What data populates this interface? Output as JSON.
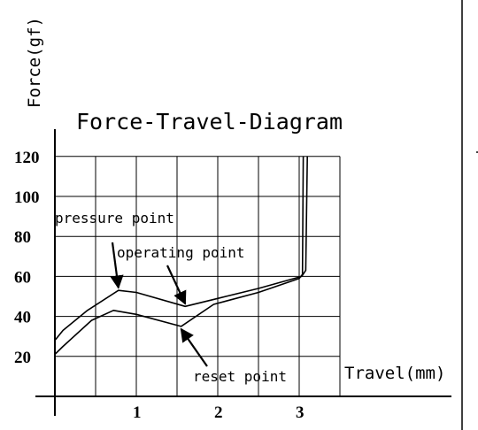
{
  "chart_data": {
    "type": "line",
    "title": "Force-Travel-Diagram",
    "xlabel": "Travel(mm)",
    "ylabel": "Force(gf)",
    "xlim": [
      0,
      3.5
    ],
    "ylim": [
      0,
      120
    ],
    "x_ticks": [
      "1",
      "2",
      "3"
    ],
    "x_tick_values": [
      1,
      2,
      3
    ],
    "y_ticks": [
      "20",
      "40",
      "60",
      "80",
      "100",
      "120"
    ],
    "y_tick_values": [
      20,
      40,
      60,
      80,
      100,
      120
    ],
    "grid": true,
    "series": [
      {
        "values": [
          {
            "x": 0.0,
            "y": 28
          },
          {
            "x": 0.1,
            "y": 33
          },
          {
            "x": 0.4,
            "y": 43
          },
          {
            "x": 0.78,
            "y": 53
          },
          {
            "x": 1.0,
            "y": 52
          },
          {
            "x": 1.6,
            "y": 45
          },
          {
            "x": 2.0,
            "y": 49
          },
          {
            "x": 2.5,
            "y": 54
          },
          {
            "x": 3.03,
            "y": 60
          },
          {
            "x": 3.08,
            "y": 63
          },
          {
            "x": 3.1,
            "y": 120
          }
        ]
      },
      {
        "values": [
          {
            "x": 0.0,
            "y": 21
          },
          {
            "x": 0.1,
            "y": 25
          },
          {
            "x": 0.45,
            "y": 38
          },
          {
            "x": 0.72,
            "y": 43
          },
          {
            "x": 1.0,
            "y": 41
          },
          {
            "x": 1.55,
            "y": 35
          },
          {
            "x": 1.95,
            "y": 46
          },
          {
            "x": 2.5,
            "y": 52
          },
          {
            "x": 3.0,
            "y": 59
          },
          {
            "x": 3.04,
            "y": 61
          },
          {
            "x": 3.05,
            "y": 120
          }
        ]
      }
    ],
    "annotations": [
      {
        "text": "pressure point",
        "point": {
          "x": 0.78,
          "y": 53
        }
      },
      {
        "text": "operating point",
        "point": {
          "x": 1.6,
          "y": 45
        }
      },
      {
        "text": "reset point",
        "point": {
          "x": 1.55,
          "y": 35
        }
      }
    ]
  }
}
